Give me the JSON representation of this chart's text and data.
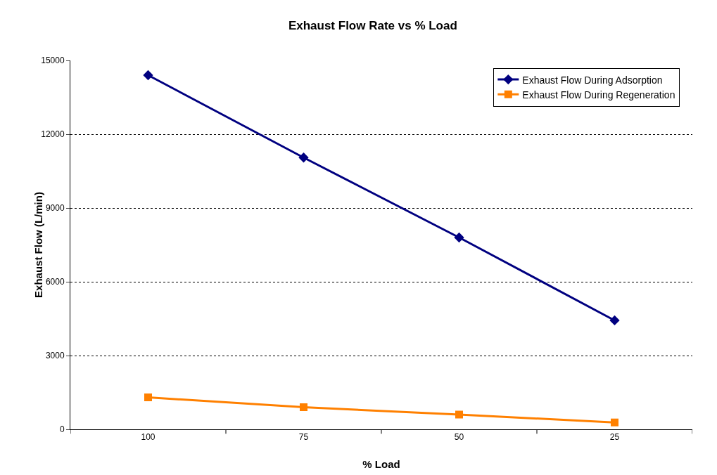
{
  "chart_data": {
    "type": "line",
    "title": "Exhaust Flow Rate vs % Load",
    "xlabel": "% Load",
    "ylabel": "Exhaust Flow (L/min)",
    "categories": [
      "100",
      "75",
      "50",
      "25"
    ],
    "series": [
      {
        "name": "Exhaust Flow During Adsorption",
        "color": "#000080",
        "marker": "diamond",
        "values": [
          14400,
          11050,
          7800,
          4430
        ]
      },
      {
        "name": "Exhaust Flow During Regeneration",
        "color": "#ff8000",
        "marker": "square",
        "values": [
          1300,
          900,
          600,
          280
        ]
      }
    ],
    "ylim": [
      0,
      15000
    ],
    "yticks": [
      0,
      3000,
      6000,
      9000,
      12000,
      15000
    ],
    "grid": "y",
    "legend": "top right",
    "line_style": "solid"
  }
}
